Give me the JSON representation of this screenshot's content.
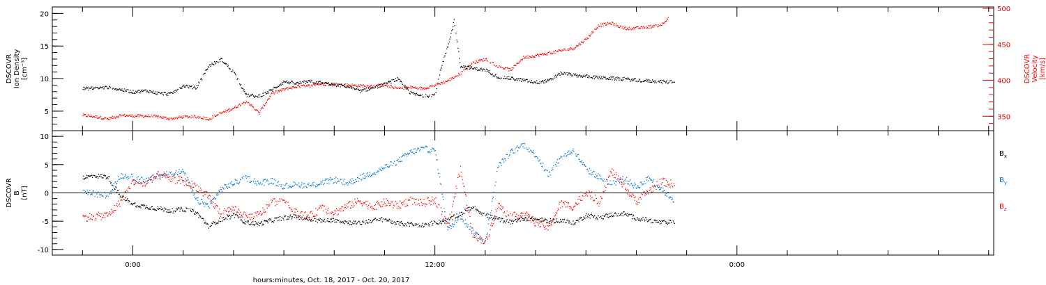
{
  "chart_data": [
    {
      "type": "scatter",
      "panel": "top",
      "ylabel": "DSCOVR Ion Density [cm^-3]",
      "ylabel_lines": [
        "DSCOVR",
        "Ion Density",
        "[cm⁻³]"
      ],
      "ylim": [
        2,
        21
      ],
      "yticks": [
        5,
        10,
        15,
        20
      ],
      "ylabel_right": "DSCOVR Velocity [km/s]",
      "ylabel_right_lines": [
        "DSCOVR",
        "Velocity",
        "[km/s]"
      ],
      "ylim_right": [
        330,
        502
      ],
      "yticks_right": [
        350,
        400,
        450,
        500
      ],
      "grid": false,
      "series": [
        {
          "color": "#000000",
          "axis": "left",
          "x": [
            -2,
            -1,
            0,
            0.5,
            1,
            1.5,
            2,
            2.5,
            3,
            3.5,
            4,
            4.5,
            5,
            5.5,
            6,
            6.5,
            7,
            7.5,
            8,
            8.5,
            9,
            9.5,
            10,
            10.5,
            11,
            11.5,
            12,
            12.25,
            12.5,
            12.75,
            13,
            13.5,
            14,
            14.5,
            15,
            15.5,
            16,
            16.5,
            17,
            17.5,
            18,
            18.5,
            19,
            19.5,
            20,
            20.5,
            21,
            21.5
          ],
          "y": [
            8.5,
            8.7,
            8.0,
            8.2,
            7.8,
            7.7,
            9,
            8.6,
            12,
            13,
            11,
            7.5,
            7.3,
            8.3,
            9.6,
            9.3,
            9.6,
            9.4,
            9.1,
            8.9,
            8.1,
            8.6,
            9.2,
            10,
            7.9,
            7.3,
            7.6,
            12,
            15,
            19,
            12,
            11.6,
            11.4,
            10.3,
            10.1,
            9.8,
            9.5,
            9.7,
            10.9,
            10.6,
            10.4,
            10.2,
            10.1,
            10.0,
            9.8,
            9.7,
            9.6,
            9.5
          ]
        },
        {
          "color": "#ff0000",
          "axis": "right",
          "x": [
            -2,
            -1.5,
            -1,
            -0.5,
            0,
            0.5,
            1,
            1.5,
            2,
            2.5,
            3,
            3.5,
            4,
            4.5,
            5,
            5.5,
            6,
            6.5,
            7,
            7.5,
            8,
            8.5,
            9,
            9.5,
            10,
            10.5,
            11,
            11.5,
            12,
            12.5,
            13,
            13.5,
            14,
            14.5,
            15,
            15.5,
            16,
            16.5,
            17,
            17.5,
            18,
            18.5,
            19,
            19.5,
            20,
            20.5,
            21,
            21.25
          ],
          "y": [
            352,
            350,
            347,
            352,
            351,
            351,
            350,
            347,
            350,
            350,
            347,
            355,
            362,
            372,
            355,
            382,
            388,
            392,
            393,
            396,
            394,
            394,
            393,
            393,
            394,
            389,
            391,
            389,
            394,
            400,
            410,
            425,
            430,
            420,
            415,
            432,
            435,
            438,
            442,
            445,
            458,
            477,
            480,
            473,
            473,
            475,
            478,
            488
          ]
        }
      ]
    },
    {
      "type": "scatter",
      "panel": "bottom",
      "ylabel": "DSCOVR B [nT]",
      "ylabel_lines": [
        "DSCOVR",
        "B",
        "[nT]"
      ],
      "ylim": [
        -11,
        11
      ],
      "yticks": [
        -10,
        -5,
        0,
        5,
        10
      ],
      "hline": 0,
      "grid": false,
      "series": [
        {
          "name": "Bx",
          "color": "#000000",
          "x": [
            -2,
            -1.5,
            -1,
            -0.5,
            0,
            0.5,
            1,
            1.5,
            2,
            2.5,
            3,
            3.5,
            4,
            4.5,
            5,
            5.5,
            6,
            6.5,
            7,
            7.5,
            8,
            8.5,
            9,
            9.5,
            10,
            10.5,
            11,
            11.5,
            12,
            12.5,
            13,
            13.5,
            14,
            14.5,
            15,
            15.5,
            16,
            16.5,
            17,
            17.5,
            18,
            18.5,
            19,
            19.5,
            20,
            20.5,
            21,
            21.5
          ],
          "y": [
            2.8,
            3.1,
            2.9,
            -0.6,
            -1.9,
            -2.4,
            -2.7,
            -3.1,
            -2.8,
            -3.4,
            -5.8,
            -4.6,
            -3.9,
            -5.2,
            -5.4,
            -4.8,
            -4.3,
            -4.1,
            -4.6,
            -4.9,
            -4.7,
            -5.1,
            -5.3,
            -4.8,
            -4.6,
            -5.3,
            -5.5,
            -5.6,
            -5.2,
            -4.8,
            -3.6,
            -2.4,
            -3.9,
            -4.6,
            -5.1,
            -4.4,
            -4.6,
            -4.9,
            -4.8,
            -5.3,
            -3.9,
            -4.3,
            -3.8,
            -3.6,
            -4.4,
            -4.8,
            -5.2,
            -5.0
          ]
        },
        {
          "name": "By",
          "color": "#0075d6",
          "x": [
            -2,
            -1.5,
            -1,
            -0.5,
            0,
            0.5,
            1,
            1.5,
            2,
            2.5,
            3,
            3.5,
            4,
            4.5,
            5,
            5.5,
            6,
            6.5,
            7,
            7.5,
            8,
            8.5,
            9,
            9.5,
            10,
            10.5,
            11,
            11.5,
            12,
            12.5,
            13,
            13.5,
            14,
            14.5,
            15,
            15.5,
            16,
            16.5,
            17,
            17.5,
            18,
            18.5,
            19,
            19.5,
            20,
            20.5,
            21,
            21.5
          ],
          "y": [
            0.3,
            -0.2,
            -0.4,
            3.2,
            2.8,
            2.2,
            3.1,
            3.6,
            3.8,
            -1.2,
            -2.2,
            0.8,
            1.8,
            2.7,
            1.8,
            2.2,
            1.2,
            1.6,
            1.3,
            1.9,
            2.4,
            1.8,
            2.7,
            3.6,
            4.6,
            5.6,
            7.2,
            7.9,
            7.5,
            -6.5,
            -4.0,
            -6.8,
            -8.5,
            4.8,
            7.2,
            8.6,
            6.8,
            3.2,
            6.4,
            7.6,
            4.2,
            2.9,
            1.6,
            2.6,
            1.1,
            2.7,
            0.6,
            -1.2
          ]
        },
        {
          "name": "Bz",
          "color": "#ff0000",
          "x": [
            -2,
            -1.5,
            -1,
            -0.5,
            0,
            0.5,
            1,
            1.5,
            2,
            2.5,
            3,
            3.5,
            4,
            4.5,
            5,
            5.5,
            6,
            6.5,
            7,
            7.5,
            8,
            8.5,
            9,
            9.5,
            10,
            10.5,
            11,
            11.5,
            12,
            12.5,
            13,
            13.5,
            14,
            14.5,
            15,
            15.5,
            16,
            16.5,
            17,
            17.5,
            18,
            18.5,
            19,
            19.5,
            20,
            20.5,
            21,
            21.5
          ],
          "y": [
            -4.3,
            -4.1,
            -3.9,
            -1.5,
            2.1,
            1.6,
            3.2,
            2.6,
            2.1,
            1.2,
            -0.8,
            -3.6,
            -2.6,
            -4.3,
            -3.8,
            -1.6,
            -1.2,
            -3.6,
            -4.1,
            -2.6,
            -3.4,
            -2.3,
            -1.3,
            -2.4,
            -1.6,
            -2.2,
            -1.3,
            -1.8,
            -1.1,
            -5.8,
            4.2,
            -7.2,
            -8.6,
            -2.1,
            -4.2,
            -3.6,
            -5.2,
            -6.1,
            -1.8,
            -2.4,
            0.4,
            -1.6,
            3.9,
            1.2,
            -1.4,
            0.5,
            2.1,
            1.5
          ]
        }
      ]
    }
  ],
  "x_axis": {
    "range_hours": [
      -3.2,
      34.2
    ],
    "tick_labels": [
      {
        "hour": 0,
        "label": "0:00"
      },
      {
        "hour": 12,
        "label": "12:00"
      },
      {
        "hour": 24,
        "label": "0:00"
      }
    ],
    "minor_step_hours": 2
  },
  "xlabel": "hours:minutes, Oct. 18, 2017 - Oct. 20, 2017",
  "legend": {
    "placement": "right",
    "entries": [
      {
        "text": "B",
        "sub": "x",
        "color": "#000000"
      },
      {
        "text": "B",
        "sub": "y",
        "color": "#0075d6"
      },
      {
        "text": "B",
        "sub": "z",
        "color": "#ff0000"
      }
    ]
  }
}
